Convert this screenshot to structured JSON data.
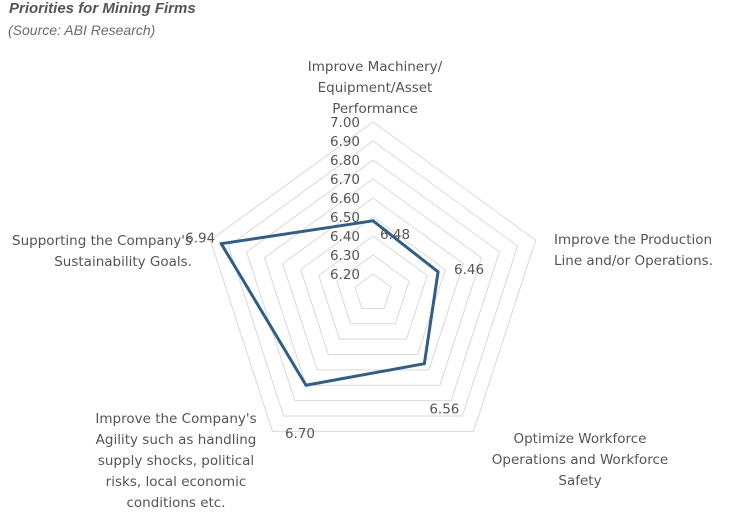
{
  "chart_data": {
    "type": "radar",
    "title": "Priorities for Mining Firms",
    "subtitle": "(Source: ABI Research)",
    "categories": [
      [
        "Improve Machinery/",
        "Equipment/Asset",
        "Performance"
      ],
      [
        "Improve the Production",
        "Line and/or Operations."
      ],
      [
        "Optimize Workforce",
        "Operations and Workforce",
        "Safety"
      ],
      [
        "Improve the Company's",
        "Agility such as handling",
        "supply shocks, political",
        "risks, local economic",
        "conditions etc."
      ],
      [
        "Supporting the Company's",
        "Sustainability Goals."
      ]
    ],
    "values": [
      6.48,
      6.46,
      6.56,
      6.7,
      6.94
    ],
    "data_labels": [
      "6.48",
      "6.46",
      "6.56",
      "6.70",
      "6.94"
    ],
    "r_ticks": [
      "6.20",
      "6.30",
      "6.40",
      "6.50",
      "6.60",
      "6.70",
      "6.80",
      "6.90",
      "7.00"
    ],
    "rlim": [
      6.1,
      7.0
    ],
    "series_color": "#2e5f8a",
    "grid_color": "#d9d9d9",
    "grid": true
  }
}
